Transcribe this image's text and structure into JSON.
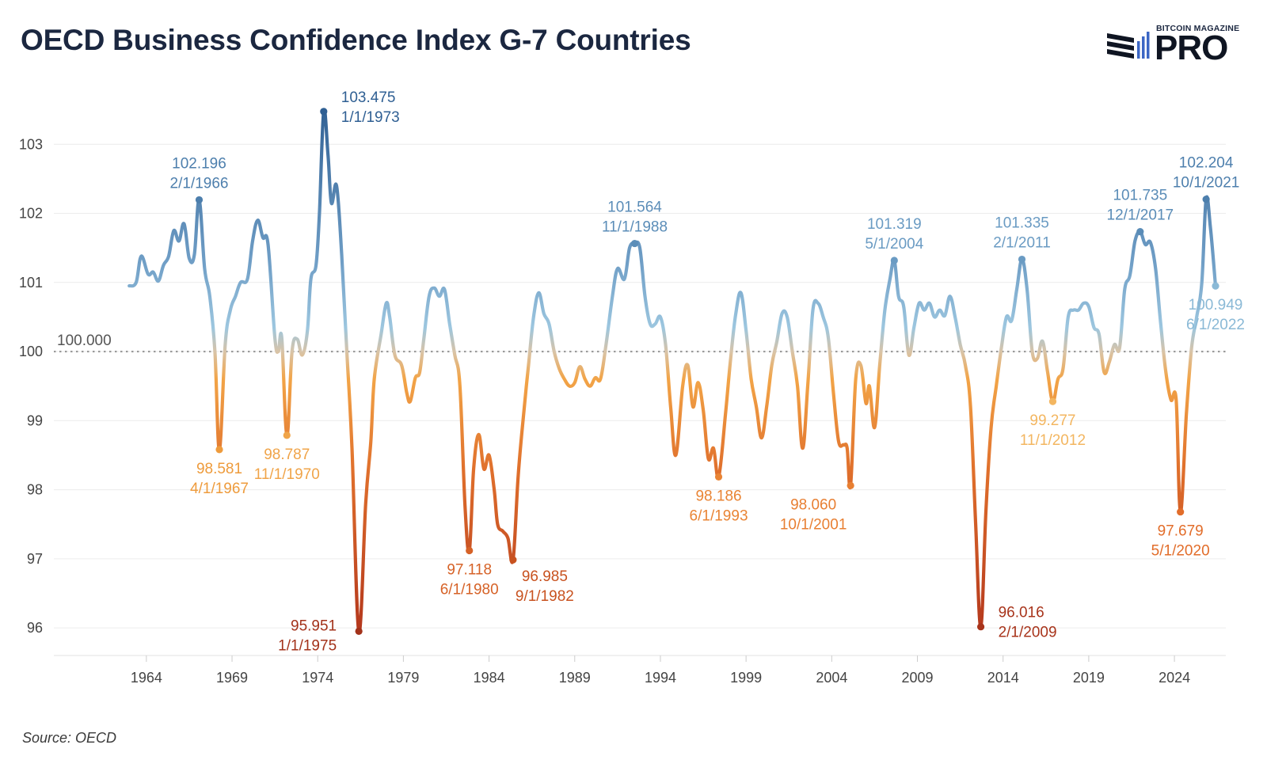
{
  "title": "OECD Business Confidence Index G-7 Countries",
  "logo": {
    "top": "BITCOIN MAGAZINE",
    "main": "PRO"
  },
  "source": "Source: OECD",
  "colors": {
    "high": "#2f5f93",
    "mid": "#9cc6df",
    "baseline": "#d8c4a8",
    "low": "#f2a447",
    "low2": "#e0702c",
    "deep": "#b3361c"
  },
  "chart_data": {
    "type": "line",
    "title": "OECD Business Confidence Index G-7 Countries",
    "xlabel": "",
    "ylabel": "",
    "xlim": [
      1958.6,
      2027.0
    ],
    "ylim": [
      95.6,
      104.0
    ],
    "xticks": [
      1964,
      1969,
      1974,
      1979,
      1984,
      1989,
      1994,
      1999,
      2004,
      2009,
      2014,
      2019,
      2024
    ],
    "yticks": [
      96,
      97,
      98,
      99,
      100,
      101,
      102,
      103
    ],
    "grid": true,
    "reference_line": {
      "value": 100,
      "label": "100.000"
    },
    "series": [
      {
        "points": [
          [
            1963.0,
            100.95
          ],
          [
            1963.4,
            101.0
          ],
          [
            1963.7,
            101.38
          ],
          [
            1964.1,
            101.12
          ],
          [
            1964.4,
            101.15
          ],
          [
            1964.7,
            101.02
          ],
          [
            1965.0,
            101.25
          ],
          [
            1965.3,
            101.38
          ],
          [
            1965.6,
            101.75
          ],
          [
            1965.9,
            101.6
          ],
          [
            1966.2,
            101.85
          ],
          [
            1966.5,
            101.35
          ],
          [
            1966.8,
            101.4
          ],
          [
            1967.08,
            102.196
          ],
          [
            1967.4,
            101.2
          ],
          [
            1967.7,
            100.8
          ],
          [
            1968.0,
            100.0
          ],
          [
            1968.26,
            98.581
          ],
          [
            1968.6,
            100.1
          ],
          [
            1968.9,
            100.6
          ],
          [
            1969.2,
            100.8
          ],
          [
            1969.5,
            101.0
          ],
          [
            1969.9,
            101.05
          ],
          [
            1970.2,
            101.6
          ],
          [
            1970.5,
            101.9
          ],
          [
            1970.8,
            101.65
          ],
          [
            1971.1,
            101.55
          ],
          [
            1971.5,
            100.2
          ],
          [
            1971.7,
            100.0
          ],
          [
            1971.9,
            100.2
          ],
          [
            1972.2,
            98.787
          ],
          [
            1972.5,
            100.0
          ],
          [
            1972.8,
            100.18
          ],
          [
            1973.1,
            99.95
          ],
          [
            1973.4,
            100.3
          ],
          [
            1973.6,
            101.05
          ],
          [
            1973.9,
            101.25
          ],
          [
            1974.1,
            102.0
          ],
          [
            1974.35,
            103.475
          ],
          [
            1974.6,
            102.85
          ],
          [
            1974.8,
            102.15
          ],
          [
            1975.1,
            102.4
          ],
          [
            1975.4,
            101.4
          ],
          [
            1975.7,
            100.0
          ],
          [
            1976.0,
            98.6
          ],
          [
            1976.4,
            95.951
          ],
          [
            1976.8,
            97.8
          ],
          [
            1977.1,
            98.7
          ],
          [
            1977.3,
            99.6
          ],
          [
            1977.7,
            100.25
          ],
          [
            1978.0,
            100.7
          ],
          [
            1978.2,
            100.5
          ],
          [
            1978.5,
            99.95
          ],
          [
            1978.9,
            99.8
          ],
          [
            1979.2,
            99.4
          ],
          [
            1979.4,
            99.28
          ],
          [
            1979.7,
            99.62
          ],
          [
            1979.95,
            99.7
          ],
          [
            1980.2,
            100.2
          ],
          [
            1980.5,
            100.8
          ],
          [
            1980.8,
            100.92
          ],
          [
            1981.1,
            100.8
          ],
          [
            1981.4,
            100.9
          ],
          [
            1981.7,
            100.4
          ],
          [
            1982.0,
            99.95
          ],
          [
            1982.3,
            99.5
          ],
          [
            1982.6,
            97.75
          ],
          [
            1982.85,
            97.118
          ],
          [
            1983.1,
            98.3
          ],
          [
            1983.4,
            98.8
          ],
          [
            1983.7,
            98.3
          ],
          [
            1984.0,
            98.5
          ],
          [
            1984.3,
            98.0
          ],
          [
            1984.5,
            97.5
          ],
          [
            1984.8,
            97.4
          ],
          [
            1985.1,
            97.3
          ],
          [
            1985.4,
            96.985
          ],
          [
            1985.7,
            98.2
          ],
          [
            1986.0,
            99.05
          ],
          [
            1986.3,
            99.8
          ],
          [
            1986.6,
            100.5
          ],
          [
            1986.9,
            100.85
          ],
          [
            1987.2,
            100.55
          ],
          [
            1987.5,
            100.4
          ],
          [
            1987.8,
            100.0
          ],
          [
            1988.1,
            99.75
          ],
          [
            1988.4,
            99.6
          ],
          [
            1988.7,
            99.5
          ],
          [
            1989.0,
            99.55
          ],
          [
            1989.3,
            99.78
          ],
          [
            1989.6,
            99.6
          ],
          [
            1989.9,
            99.5
          ],
          [
            1990.2,
            99.62
          ],
          [
            1990.5,
            99.6
          ],
          [
            1990.8,
            100.05
          ],
          [
            1991.2,
            100.8
          ],
          [
            1991.5,
            101.2
          ],
          [
            1991.9,
            101.05
          ],
          [
            1992.2,
            101.5
          ],
          [
            1992.5,
            101.564
          ],
          [
            1992.8,
            101.5
          ],
          [
            1993.1,
            100.8
          ],
          [
            1993.4,
            100.4
          ],
          [
            1993.7,
            100.4
          ],
          [
            1994.0,
            100.5
          ],
          [
            1994.3,
            100.1
          ],
          [
            1994.6,
            99.2
          ],
          [
            1994.9,
            98.5
          ],
          [
            1995.3,
            99.5
          ],
          [
            1995.6,
            99.8
          ],
          [
            1995.9,
            99.2
          ],
          [
            1996.2,
            99.55
          ],
          [
            1996.5,
            99.15
          ],
          [
            1996.8,
            98.45
          ],
          [
            1997.1,
            98.6
          ],
          [
            1997.4,
            98.186
          ],
          [
            1997.8,
            99.1
          ],
          [
            1998.1,
            99.9
          ],
          [
            1998.4,
            100.55
          ],
          [
            1998.7,
            100.85
          ],
          [
            1999.0,
            100.3
          ],
          [
            1999.3,
            99.6
          ],
          [
            1999.6,
            99.2
          ],
          [
            1999.9,
            98.75
          ],
          [
            2000.2,
            99.2
          ],
          [
            2000.5,
            99.8
          ],
          [
            2000.8,
            100.15
          ],
          [
            2001.1,
            100.55
          ],
          [
            2001.4,
            100.5
          ],
          [
            2001.7,
            100.0
          ],
          [
            2002.0,
            99.5
          ],
          [
            2002.3,
            98.6
          ],
          [
            2002.6,
            99.5
          ],
          [
            2002.9,
            100.6
          ],
          [
            2003.2,
            100.7
          ],
          [
            2003.5,
            100.5
          ],
          [
            2003.8,
            100.2
          ],
          [
            2004.1,
            99.4
          ],
          [
            2004.4,
            98.7
          ],
          [
            2004.7,
            98.65
          ],
          [
            2004.9,
            98.6
          ],
          [
            2005.1,
            98.06
          ],
          [
            2005.4,
            99.6
          ],
          [
            2005.7,
            99.8
          ],
          [
            2006.0,
            99.25
          ],
          [
            2006.2,
            99.5
          ],
          [
            2006.5,
            98.9
          ],
          [
            2006.8,
            99.8
          ],
          [
            2007.1,
            100.6
          ],
          [
            2007.4,
            101.05
          ],
          [
            2007.65,
            101.319
          ],
          [
            2007.9,
            100.8
          ],
          [
            2008.2,
            100.65
          ],
          [
            2008.5,
            99.95
          ],
          [
            2008.8,
            100.35
          ],
          [
            2009.1,
            100.7
          ],
          [
            2009.4,
            100.6
          ],
          [
            2009.7,
            100.7
          ],
          [
            2010.0,
            100.5
          ],
          [
            2010.3,
            100.6
          ],
          [
            2010.6,
            100.52
          ],
          [
            2010.9,
            100.8
          ],
          [
            2011.2,
            100.5
          ],
          [
            2011.5,
            100.1
          ],
          [
            2011.8,
            99.8
          ],
          [
            2012.1,
            99.2
          ],
          [
            2012.4,
            97.5
          ],
          [
            2012.7,
            96.016
          ],
          [
            2013.0,
            97.7
          ],
          [
            2013.3,
            98.9
          ],
          [
            2013.6,
            99.5
          ],
          [
            2013.9,
            100.05
          ],
          [
            2014.2,
            100.5
          ],
          [
            2014.5,
            100.45
          ],
          [
            2014.8,
            100.9
          ],
          [
            2015.1,
            101.335
          ],
          [
            2015.4,
            100.9
          ],
          [
            2015.7,
            100.0
          ],
          [
            2016.0,
            99.9
          ],
          [
            2016.3,
            100.15
          ],
          [
            2016.6,
            99.7
          ],
          [
            2016.9,
            99.277
          ],
          [
            2017.2,
            99.6
          ],
          [
            2017.5,
            99.75
          ],
          [
            2017.8,
            100.5
          ],
          [
            2018.1,
            100.6
          ],
          [
            2018.4,
            100.6
          ],
          [
            2018.7,
            100.7
          ],
          [
            2019.0,
            100.65
          ],
          [
            2019.3,
            100.35
          ],
          [
            2019.6,
            100.25
          ],
          [
            2019.9,
            99.7
          ],
          [
            2020.2,
            99.85
          ],
          [
            2020.5,
            100.1
          ],
          [
            2020.8,
            100.05
          ],
          [
            2021.1,
            100.9
          ],
          [
            2021.4,
            101.1
          ],
          [
            2021.7,
            101.6
          ],
          [
            2022.0,
            101.735
          ],
          [
            2022.3,
            101.55
          ],
          [
            2022.6,
            101.58
          ],
          [
            2022.9,
            101.2
          ],
          [
            2023.2,
            100.4
          ],
          [
            2023.5,
            99.7
          ],
          [
            2023.8,
            99.3
          ],
          [
            2024.1,
            99.3
          ],
          [
            2024.35,
            97.679
          ],
          [
            2024.7,
            99.1
          ],
          [
            2025.0,
            100.05
          ],
          [
            2025.3,
            100.5
          ],
          [
            2025.6,
            101.0
          ],
          [
            2025.85,
            102.204
          ],
          [
            2026.1,
            101.8
          ],
          [
            2026.4,
            100.949
          ]
        ]
      }
    ],
    "annotations": [
      {
        "value": "102.196",
        "date": "2/1/1966",
        "x": 1967.08,
        "y": 102.196,
        "pos": "above",
        "color": "#4d7fad"
      },
      {
        "value": "98.581",
        "date": "4/1/1967",
        "x": 1968.26,
        "y": 98.581,
        "pos": "below",
        "color": "#ee9b3c"
      },
      {
        "value": "98.787",
        "date": "11/1/1970",
        "x": 1972.2,
        "y": 98.787,
        "pos": "below",
        "color": "#f0a449"
      },
      {
        "value": "103.475",
        "date": "1/1/1973",
        "x": 1974.35,
        "y": 103.475,
        "pos": "right",
        "color": "#2f5f93"
      },
      {
        "value": "95.951",
        "date": "1/1/1975",
        "x": 1976.4,
        "y": 95.951,
        "pos": "left",
        "color": "#a3321a"
      },
      {
        "value": "97.118",
        "date": "6/1/1980",
        "x": 1982.85,
        "y": 97.118,
        "pos": "below",
        "color": "#d66227"
      },
      {
        "value": "96.985",
        "date": "9/1/1982",
        "x": 1985.4,
        "y": 96.985,
        "pos": "below-right",
        "color": "#c8521f"
      },
      {
        "value": "101.564",
        "date": "11/1/1988",
        "x": 1992.5,
        "y": 101.564,
        "pos": "above",
        "color": "#5b8db8"
      },
      {
        "value": "98.186",
        "date": "6/1/1993",
        "x": 1997.4,
        "y": 98.186,
        "pos": "below",
        "color": "#e98434"
      },
      {
        "value": "98.060",
        "date": "10/1/2001",
        "x": 2005.1,
        "y": 98.06,
        "pos": "below-left",
        "color": "#e87f32"
      },
      {
        "value": "101.319",
        "date": "5/1/2004",
        "x": 2007.65,
        "y": 101.319,
        "pos": "above",
        "color": "#6a9bc3"
      },
      {
        "value": "96.016",
        "date": "2/1/2009",
        "x": 2012.7,
        "y": 96.016,
        "pos": "right",
        "color": "#a8341b"
      },
      {
        "value": "101.335",
        "date": "2/1/2011",
        "x": 2015.1,
        "y": 101.335,
        "pos": "above",
        "color": "#6a9bc3"
      },
      {
        "value": "99.277",
        "date": "11/1/2012",
        "x": 2016.9,
        "y": 99.277,
        "pos": "below",
        "color": "#f3b660"
      },
      {
        "value": "101.735",
        "date": "12/1/2017",
        "x": 2022.0,
        "y": 101.735,
        "pos": "above",
        "color": "#5a8cb7"
      },
      {
        "value": "97.679",
        "date": "5/1/2020",
        "x": 2024.35,
        "y": 97.679,
        "pos": "below",
        "color": "#e26d2a"
      },
      {
        "value": "102.204",
        "date": "10/1/2021",
        "x": 2025.85,
        "y": 102.204,
        "pos": "above",
        "color": "#4d7fad"
      },
      {
        "value": "100.949",
        "date": "6/1/2022",
        "x": 2026.4,
        "y": 100.949,
        "pos": "below",
        "color": "#8ab9d6"
      }
    ]
  }
}
